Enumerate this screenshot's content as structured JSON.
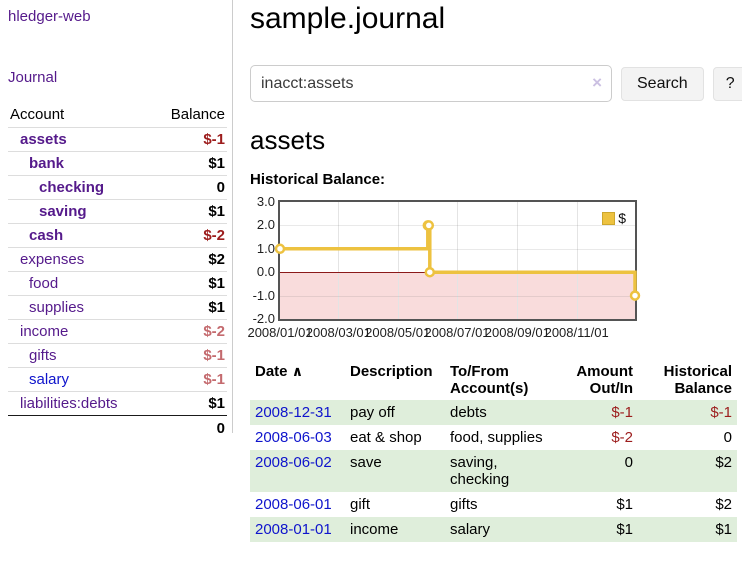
{
  "app": {
    "brand": "hledger-web"
  },
  "nav": {
    "journal": "Journal"
  },
  "sidebar": {
    "header": {
      "account": "Account",
      "balance": "Balance"
    },
    "accounts": [
      {
        "name": "assets",
        "balance": "$-1",
        "level": 0,
        "bold": true,
        "link": "visited",
        "tone": "neg"
      },
      {
        "name": "bank",
        "balance": "$1",
        "level": 1,
        "bold": true,
        "link": "visited",
        "tone": "pos"
      },
      {
        "name": "checking",
        "balance": "0",
        "level": 2,
        "bold": true,
        "link": "visited",
        "tone": "pos"
      },
      {
        "name": "saving",
        "balance": "$1",
        "level": 2,
        "bold": true,
        "link": "visited",
        "tone": "pos"
      },
      {
        "name": "cash",
        "balance": "$-2",
        "level": 1,
        "bold": true,
        "link": "visited",
        "tone": "neg"
      },
      {
        "name": "expenses",
        "balance": "$2",
        "level": 0,
        "bold": false,
        "link": "visited",
        "tone": "pos"
      },
      {
        "name": "food",
        "balance": "$1",
        "level": 1,
        "bold": false,
        "link": "visited",
        "tone": "pos"
      },
      {
        "name": "supplies",
        "balance": "$1",
        "level": 1,
        "bold": false,
        "link": "visited",
        "tone": "pos"
      },
      {
        "name": "income",
        "balance": "$-2",
        "level": 0,
        "bold": false,
        "link": "visited",
        "tone": "neg-faded"
      },
      {
        "name": "gifts",
        "balance": "$-1",
        "level": 1,
        "bold": false,
        "link": "visited",
        "tone": "neg-faded"
      },
      {
        "name": "salary",
        "balance": "$-1",
        "level": 1,
        "bold": false,
        "link": "unvisited",
        "tone": "neg-faded"
      },
      {
        "name": "liabilities:debts",
        "balance": "$1",
        "level": 0,
        "bold": false,
        "link": "visited",
        "tone": "pos",
        "total_sep": true
      }
    ],
    "total": "0"
  },
  "header": {
    "title": "sample.journal"
  },
  "search": {
    "value": "inacct:assets",
    "clear_icon": "×",
    "search_button": "Search",
    "help_button": "?"
  },
  "account_page": {
    "heading": "assets",
    "chart_label": "Historical Balance:"
  },
  "chart_data": {
    "type": "line",
    "step": true,
    "title": "Historical Balance:",
    "legend": "$",
    "series": [
      {
        "name": "$",
        "color": "#edc240",
        "points": [
          [
            "2008/01/01",
            1
          ],
          [
            "2008/06/01",
            2
          ],
          [
            "2008/06/02",
            2
          ],
          [
            "2008/06/03",
            0
          ],
          [
            "2008/12/31",
            -1
          ]
        ]
      }
    ],
    "x_start": "2008/01/01",
    "x_end": "2008/12/31",
    "x_tick_labels": [
      "2008/01/01",
      "2008/03/01",
      "2008/05/01",
      "2008/07/01",
      "2008/09/01",
      "2008/11/01"
    ],
    "y_ticks": [
      3,
      2,
      1,
      0,
      -1,
      -2
    ],
    "ylim": [
      -2,
      3
    ],
    "grid": true,
    "legend_position": "top-right",
    "negative_region_color": "#f9dcdc",
    "zero_line_color": "#8b1a1a"
  },
  "register": {
    "headers": {
      "date": "Date",
      "sort_icon": "∧",
      "description": "Description",
      "accounts": "To/From Account(s)",
      "amount": "Amount Out/In",
      "balance": "Historical Balance"
    },
    "rows": [
      {
        "date": "2008-12-31",
        "description": "pay off",
        "accounts": "debts",
        "amount": "$-1",
        "balance": "$-1"
      },
      {
        "date": "2008-06-03",
        "description": "eat & shop",
        "accounts": "food, supplies",
        "amount": "$-2",
        "balance": "0"
      },
      {
        "date": "2008-06-02",
        "description": "save",
        "accounts": "saving,\nchecking",
        "amount": "0",
        "balance": "$2"
      },
      {
        "date": "2008-06-01",
        "description": "gift",
        "accounts": "gifts",
        "amount": "$1",
        "balance": "$2"
      },
      {
        "date": "2008-01-01",
        "description": "income",
        "accounts": "salary",
        "amount": "$1",
        "balance": "$1"
      }
    ]
  },
  "colors": {
    "link_visited": "#551a8b",
    "link_unvisited": "#0f14cc",
    "negative_strong": "#9c1c1c",
    "negative_faded": "#c46a6e",
    "row_stripe_green": "#dfeedb",
    "chart_line": "#edc240",
    "chart_negative_fill": "#f9dcdc",
    "chart_zero_line": "#8b1a1a"
  }
}
